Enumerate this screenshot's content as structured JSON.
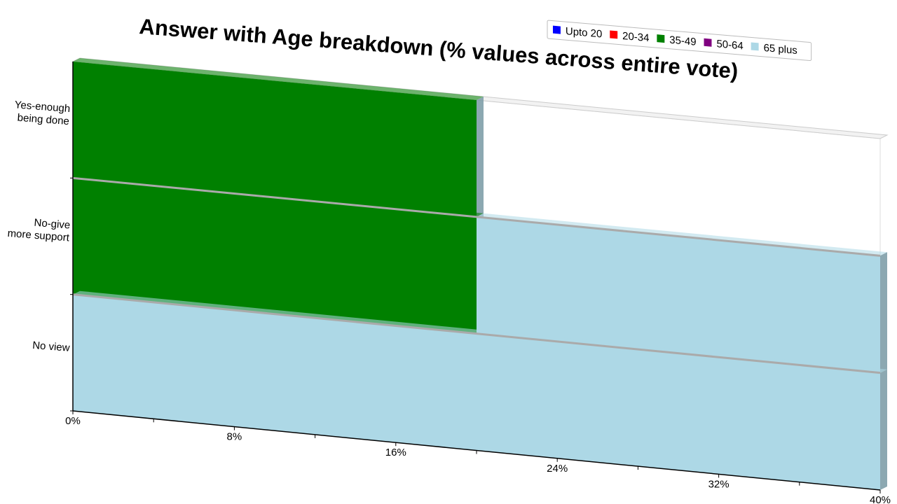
{
  "chart_data": {
    "type": "bar",
    "orientation": "horizontal",
    "stacked": true,
    "title": "Answer with Age breakdown (% values across entire vote)",
    "categories": [
      "Yes-enough\nbeing done",
      "No-give\nmore support",
      "No view"
    ],
    "series": [
      {
        "name": "Upto 20",
        "color": "#0000ff",
        "values": [
          0,
          0,
          0
        ]
      },
      {
        "name": "20-34",
        "color": "#ff0000",
        "values": [
          0,
          0,
          0
        ]
      },
      {
        "name": "35-49",
        "color": "#008000",
        "values": [
          20,
          20,
          0
        ]
      },
      {
        "name": "50-64",
        "color": "#800080",
        "values": [
          0,
          0,
          0
        ]
      },
      {
        "name": "65 plus",
        "color": "#add8e6",
        "values": [
          0,
          20,
          40
        ]
      }
    ],
    "x_ticks": [
      "0%",
      "8%",
      "16%",
      "24%",
      "32%",
      "40%"
    ],
    "xlim": [
      0,
      40
    ],
    "legend_position": "top-right",
    "grid": false
  }
}
